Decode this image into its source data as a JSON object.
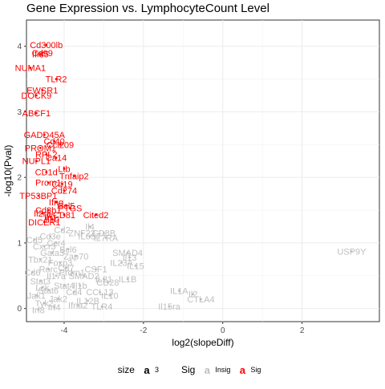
{
  "chart_data": {
    "type": "scatter",
    "title": "Gene Expression vs.  LymphocyteCount Level",
    "xlabel": "log2(slopeDiff)",
    "ylabel": "-log10(Pval)",
    "xlim": [
      -4.95,
      3.95
    ],
    "ylim": [
      -0.2,
      4.4
    ],
    "x_ticks": [
      -4,
      -2,
      0,
      2
    ],
    "y_ticks": [
      0,
      1,
      2,
      3,
      4
    ],
    "grid": true,
    "legend_position": "bottom",
    "colors": {
      "Sig": "#ff0000",
      "Insig": "#bebebe"
    },
    "legend": {
      "size_title": "size",
      "size_key": "a",
      "size_label": "3",
      "sig_title": "Sig",
      "entries": [
        {
          "key": "a",
          "label": "Insig",
          "color": "#bebebe"
        },
        {
          "key": "a",
          "label": "Sig",
          "color": "#ff0000"
        }
      ]
    },
    "series": [
      {
        "name": "Sig",
        "points": [
          {
            "label": "Cd300lb",
            "x": -4.45,
            "y": 4.02
          },
          {
            "label": "Cd99",
            "x": -4.55,
            "y": 3.9
          },
          {
            "label": "Ifi35",
            "x": -4.6,
            "y": 3.88
          },
          {
            "label": "NUMA1",
            "x": -4.85,
            "y": 3.67
          },
          {
            "label": "TLR2",
            "x": -4.2,
            "y": 3.5
          },
          {
            "label": "EWSR1",
            "x": -4.55,
            "y": 3.33
          },
          {
            "label": "DOCK9",
            "x": -4.7,
            "y": 3.25
          },
          {
            "label": "ABCF1",
            "x": -4.7,
            "y": 2.98
          },
          {
            "label": "GADD45A",
            "x": -4.5,
            "y": 2.65
          },
          {
            "label": "Cd40",
            "x": -4.25,
            "y": 2.55
          },
          {
            "label": "Ccl209",
            "x": -4.1,
            "y": 2.5
          },
          {
            "label": "PROM1",
            "x": -4.6,
            "y": 2.45
          },
          {
            "label": "RPL2",
            "x": -4.45,
            "y": 2.35
          },
          {
            "label": "Ca14",
            "x": -4.2,
            "y": 2.3
          },
          {
            "label": "NUPL1",
            "x": -4.7,
            "y": 2.25
          },
          {
            "label": "Ltb",
            "x": -4.0,
            "y": 2.13
          },
          {
            "label": "CD1d",
            "x": -4.45,
            "y": 2.08
          },
          {
            "label": "Tnfaip2",
            "x": -3.75,
            "y": 2.02
          },
          {
            "label": "Prom1",
            "x": -4.4,
            "y": 1.92
          },
          {
            "label": "Cd19",
            "x": -4.05,
            "y": 1.9
          },
          {
            "label": "Cd274",
            "x": -4.0,
            "y": 1.8
          },
          {
            "label": "TP53BP1",
            "x": -4.65,
            "y": 1.72
          },
          {
            "label": "Ifng",
            "x": -4.2,
            "y": 1.62
          },
          {
            "label": "Ccl5",
            "x": -3.95,
            "y": 1.57
          },
          {
            "label": "Cd8b1",
            "x": -4.4,
            "y": 1.5
          },
          {
            "label": "PTGS",
            "x": -3.85,
            "y": 1.53
          },
          {
            "label": "Cited2",
            "x": -3.2,
            "y": 1.43
          },
          {
            "label": "Il2ra",
            "x": -4.55,
            "y": 1.45
          },
          {
            "label": "Il7r",
            "x": -4.35,
            "y": 1.4
          },
          {
            "label": "CD81",
            "x": -4.0,
            "y": 1.43
          },
          {
            "label": "DICER1",
            "x": -4.5,
            "y": 1.32
          },
          {
            "label": "Il10",
            "x": -4.3,
            "y": 1.36
          }
        ]
      },
      {
        "name": "Insig",
        "points": [
          {
            "label": "USP9Y",
            "x": 3.25,
            "y": 0.87
          },
          {
            "label": "IL1A",
            "x": -1.1,
            "y": 0.27
          },
          {
            "label": "Il2",
            "x": -0.75,
            "y": 0.22
          },
          {
            "label": "CTLA4",
            "x": -0.55,
            "y": 0.14
          },
          {
            "label": "Il15ra",
            "x": -1.35,
            "y": 0.03
          },
          {
            "label": "Il4",
            "x": -3.35,
            "y": 1.25
          },
          {
            "label": "ZNF22",
            "x": -3.55,
            "y": 1.15
          },
          {
            "label": "IL6ST",
            "x": -3.35,
            "y": 1.1
          },
          {
            "label": "CD8B",
            "x": -3.0,
            "y": 1.15
          },
          {
            "label": "IL7RA",
            "x": -2.95,
            "y": 1.08
          },
          {
            "label": "SMAD4",
            "x": -2.4,
            "y": 0.85
          },
          {
            "label": "Il13",
            "x": -2.35,
            "y": 0.78
          },
          {
            "label": "IL23A",
            "x": -2.55,
            "y": 0.7
          },
          {
            "label": "IL15",
            "x": -2.2,
            "y": 0.65
          },
          {
            "label": "CSF1",
            "x": -3.2,
            "y": 0.6
          },
          {
            "label": "SMAD2",
            "x": -3.5,
            "y": 0.5
          },
          {
            "label": "IL21",
            "x": -3.0,
            "y": 0.45
          },
          {
            "label": "IL1B",
            "x": -2.4,
            "y": 0.45
          },
          {
            "label": "CD28",
            "x": -2.9,
            "y": 0.4
          },
          {
            "label": "Il1b",
            "x": -3.6,
            "y": 0.35
          },
          {
            "label": "CCL13",
            "x": -3.1,
            "y": 0.25
          },
          {
            "label": "IL10",
            "x": -2.85,
            "y": 0.2
          },
          {
            "label": "IL12B",
            "x": -3.4,
            "y": 0.12
          },
          {
            "label": "Ifna2",
            "x": -3.65,
            "y": 0.05
          },
          {
            "label": "TLR4",
            "x": -3.05,
            "y": 0.03
          },
          {
            "label": "Ccr4",
            "x": -4.2,
            "y": 1.0
          },
          {
            "label": "Cxcr3",
            "x": -4.5,
            "y": 0.95
          },
          {
            "label": "Gata3",
            "x": -4.3,
            "y": 0.85
          },
          {
            "label": "Tbx21",
            "x": -4.6,
            "y": 0.75
          },
          {
            "label": "Foxp3",
            "x": -4.1,
            "y": 0.7
          },
          {
            "label": "Rorc",
            "x": -4.4,
            "y": 0.6
          },
          {
            "label": "Il17a",
            "x": -4.2,
            "y": 0.5
          },
          {
            "label": "Stat3",
            "x": -4.6,
            "y": 0.42
          },
          {
            "label": "Stat4",
            "x": -4.0,
            "y": 0.35
          },
          {
            "label": "Stat6",
            "x": -4.4,
            "y": 0.28
          },
          {
            "label": "Jak1",
            "x": -4.7,
            "y": 0.2
          },
          {
            "label": "Jak2",
            "x": -4.15,
            "y": 0.15
          },
          {
            "label": "Tyk2",
            "x": -4.5,
            "y": 0.08
          },
          {
            "label": "Irf4",
            "x": -4.25,
            "y": 0.02
          },
          {
            "label": "Irf8",
            "x": -4.65,
            "y": -0.02
          },
          {
            "label": "Bcl6",
            "x": -3.9,
            "y": 0.9
          },
          {
            "label": "Prdm1",
            "x": -3.8,
            "y": 0.55
          },
          {
            "label": "Cd4",
            "x": -3.75,
            "y": 0.25
          },
          {
            "label": "Cd3e",
            "x": -4.35,
            "y": 1.1
          },
          {
            "label": "Cd2",
            "x": -4.05,
            "y": 1.2
          },
          {
            "label": "Cd5",
            "x": -4.75,
            "y": 1.05
          },
          {
            "label": "Cd6",
            "x": -4.8,
            "y": 0.55
          },
          {
            "label": "Cd7",
            "x": -3.95,
            "y": 0.62
          },
          {
            "label": "Lck",
            "x": -4.55,
            "y": 0.32
          },
          {
            "label": "Zap70",
            "x": -3.7,
            "y": 0.8
          }
        ]
      }
    ]
  }
}
